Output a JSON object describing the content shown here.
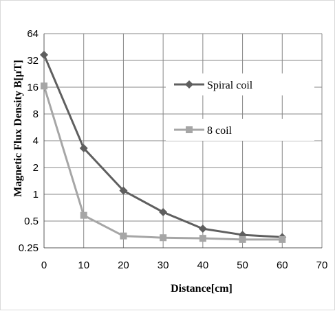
{
  "chart_data": {
    "type": "line",
    "title": "",
    "xlabel": "Distance[cm]",
    "ylabel": "Magnetic  Flux Density B[μT]",
    "x": [
      0,
      10,
      20,
      30,
      40,
      50,
      60
    ],
    "xlim": [
      0,
      70
    ],
    "xticks": [
      "0",
      "10",
      "20",
      "30",
      "40",
      "50",
      "60",
      "70"
    ],
    "ylim": [
      0.25,
      64
    ],
    "yscale": "log2",
    "yticks": [
      "0.25",
      "0.5",
      "1",
      "2",
      "4",
      "8",
      "16",
      "32",
      "64"
    ],
    "grid": true,
    "legend_position": "right",
    "series": [
      {
        "name": "Spiral coil",
        "values": [
          37,
          3.3,
          1.1,
          0.63,
          0.41,
          0.35,
          0.33
        ],
        "color": "#5f5f5f",
        "marker": "diamond"
      },
      {
        "name": "8 coil",
        "values": [
          16.5,
          0.58,
          0.34,
          0.325,
          0.32,
          0.31,
          0.31
        ],
        "color": "#a6a6a6",
        "marker": "square"
      }
    ]
  }
}
